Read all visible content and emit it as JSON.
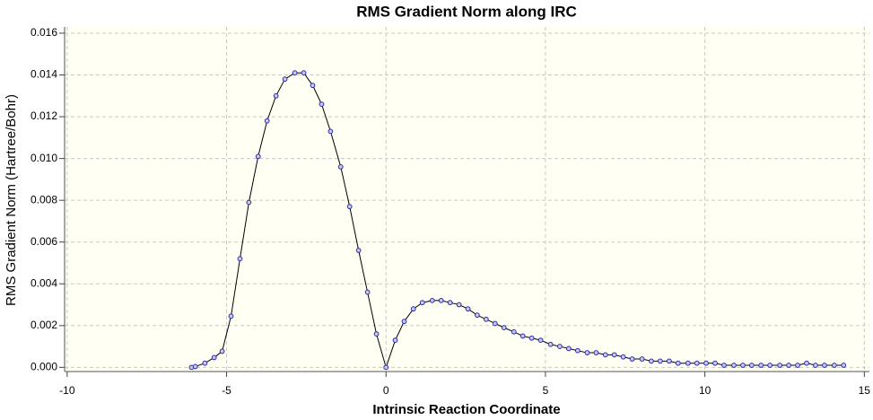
{
  "chart_data": {
    "type": "line",
    "title": "RMS Gradient Norm along IRC",
    "x_label": "Intrinsic Reaction Coordinate",
    "y_label": "RMS Gradient Norm (Hartree/Bohr)",
    "x": [
      -6.1,
      -5.98,
      -5.68,
      -5.39,
      -5.14,
      -4.86,
      -4.58,
      -4.3,
      -4.01,
      -3.73,
      -3.45,
      -3.17,
      -2.86,
      -2.58,
      -2.3,
      -2.02,
      -1.74,
      -1.42,
      -1.14,
      -0.86,
      -0.58,
      -0.3,
      0,
      0.29,
      0.57,
      0.86,
      1.14,
      1.45,
      1.73,
      2.01,
      2.29,
      2.57,
      2.86,
      3.14,
      3.42,
      3.7,
      4.01,
      4.29,
      4.57,
      4.85,
      5.16,
      5.45,
      5.73,
      6.01,
      6.31,
      6.59,
      6.88,
      7.16,
      7.44,
      7.72,
      8.03,
      8.32,
      8.6,
      8.88,
      9.16,
      9.47,
      9.75,
      10.04,
      10.32,
      10.6,
      10.91,
      11.19,
      11.47,
      11.76,
      12.04,
      12.35,
      12.63,
      12.91,
      13.19,
      13.47,
      13.75,
      14.06,
      14.35
    ],
    "values": [
      0.0,
      4e-05,
      0.0002,
      0.00047,
      0.00077,
      0.00245,
      0.0052,
      0.0079,
      0.0101,
      0.0118,
      0.013,
      0.0138,
      0.0141,
      0.0141,
      0.0135,
      0.0126,
      0.0113,
      0.0096,
      0.0077,
      0.0056,
      0.0036,
      0.0016,
      0.0,
      0.0013,
      0.0022,
      0.0028,
      0.0031,
      0.0032,
      0.0032,
      0.0031,
      0.003,
      0.0028,
      0.0025,
      0.0023,
      0.0021,
      0.0019,
      0.0017,
      0.0015,
      0.0014,
      0.0013,
      0.0011,
      0.001,
      0.0009,
      0.0008,
      0.0007,
      0.0007,
      0.0006,
      0.0006,
      0.0005,
      0.0004,
      0.0004,
      0.0003,
      0.0003,
      0.0003,
      0.0002,
      0.0002,
      0.0002,
      0.0002,
      0.0002,
      0.0001,
      0.0001,
      0.0001,
      0.0001,
      0.0001,
      0.0001,
      0.0001,
      0.0001,
      0.0001,
      0.0002,
      0.0001,
      0.0001,
      0.0001,
      0.0001
    ],
    "color": "#000000",
    "marker_color": "#2c2ca8",
    "xlim": [
      -10.08,
      15.16
    ],
    "ylim": [
      -0.0002,
      0.0163
    ],
    "xticks": [
      -10,
      -5,
      0,
      5,
      10,
      15
    ],
    "yticks": [
      {
        "value": 0,
        "label": "0.000"
      },
      {
        "value": 0.002,
        "label": "0.002"
      },
      {
        "value": 0.004,
        "label": "0.004"
      },
      {
        "value": 0.006,
        "label": "0.006"
      },
      {
        "value": 0.008,
        "label": "0.008"
      },
      {
        "value": 0.01,
        "label": "0.010"
      },
      {
        "value": 0.012,
        "label": "0.012"
      },
      {
        "value": 0.014,
        "label": "0.014"
      },
      {
        "value": 0.016,
        "label": "0.016"
      }
    ],
    "grid": true
  }
}
